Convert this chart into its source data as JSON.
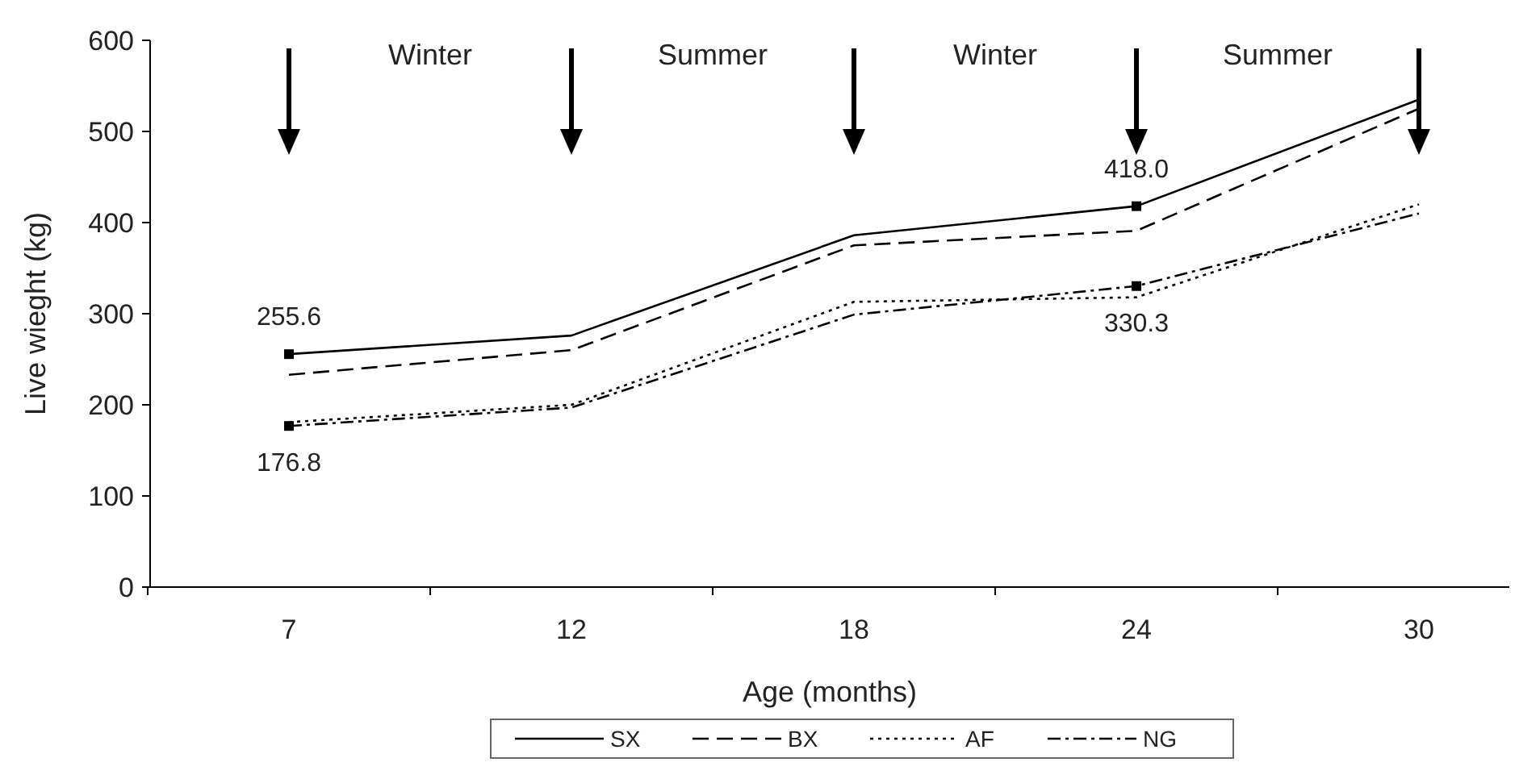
{
  "chart_data": {
    "type": "line",
    "xlabel": "Age (months)",
    "ylabel": "Live wieght (kg)",
    "categories": [
      "7",
      "12",
      "18",
      "24",
      "30"
    ],
    "ylim": [
      0,
      600
    ],
    "yticks": [
      0,
      100,
      200,
      300,
      400,
      500,
      600
    ],
    "legend": "bottom",
    "grid": false,
    "marker": "none",
    "series": [
      {
        "name": "SX",
        "color": "#000000",
        "line_style": "solid",
        "values": [
          255.6,
          276,
          386,
          418.0,
          535
        ],
        "value_labels": [
          "255.6",
          null,
          null,
          "418.0",
          null
        ]
      },
      {
        "name": "BX",
        "color": "#000000",
        "line_style": "dashed",
        "values": [
          233,
          260,
          375,
          391,
          525
        ]
      },
      {
        "name": "AF",
        "color": "#000000",
        "line_style": "dotted",
        "values": [
          181,
          200,
          313,
          318,
          420
        ]
      },
      {
        "name": "NG",
        "color": "#000000",
        "line_style": "dashdot",
        "values": [
          176.8,
          197,
          299,
          330.3,
          410
        ],
        "value_labels": [
          "176.8",
          null,
          null,
          "330.3",
          null
        ]
      }
    ],
    "annotations": [
      "Winter",
      "Summer",
      "Winter",
      "Summer"
    ]
  }
}
